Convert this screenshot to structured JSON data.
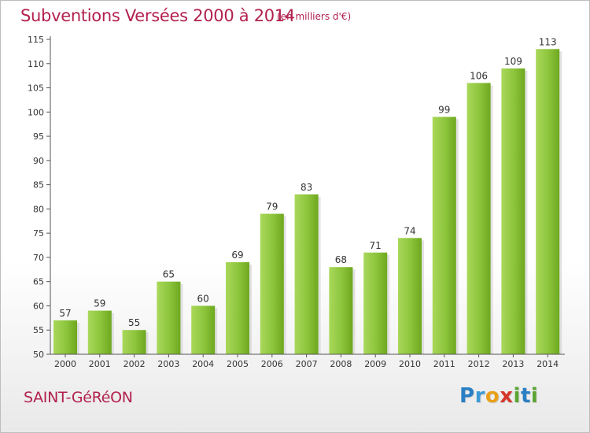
{
  "header": {
    "title": "Subventions Versées 2000 à 2014",
    "subtitle": "(en milliers d'€)"
  },
  "footer": {
    "commune": "SAINT-GéRéON",
    "logo": {
      "text": "Proxiti",
      "letters": [
        {
          "ch": "P",
          "color": "#2a7fc4"
        },
        {
          "ch": "r",
          "color": "#3a9ad6"
        },
        {
          "ch": "o",
          "color": "#e8a019"
        },
        {
          "ch": "x",
          "color": "#d6372b"
        },
        {
          "ch": "i",
          "color": "#5aa532"
        },
        {
          "ch": "t",
          "color": "#2a7fc4"
        },
        {
          "ch": "i",
          "color": "#5aa532"
        }
      ]
    }
  },
  "chart_data": {
    "type": "bar",
    "title": "Subventions Versées 2000 à 2014",
    "subtitle": "(en milliers d'€)",
    "categories": [
      "2000",
      "2001",
      "2002",
      "2003",
      "2004",
      "2005",
      "2006",
      "2007",
      "2008",
      "2009",
      "2010",
      "2011",
      "2012",
      "2013",
      "2014"
    ],
    "values": [
      57,
      59,
      55,
      65,
      60,
      69,
      79,
      83,
      68,
      71,
      74,
      99,
      106,
      109,
      113
    ],
    "ylim": [
      50,
      115
    ],
    "yticks": [
      50,
      55,
      60,
      65,
      70,
      75,
      80,
      85,
      90,
      95,
      100,
      105,
      110,
      115
    ],
    "grid": false,
    "colors": {
      "bar_light": "#9fd04e",
      "bar_dark": "#6ea81f",
      "axis": "#555555",
      "text": "#333333"
    }
  }
}
